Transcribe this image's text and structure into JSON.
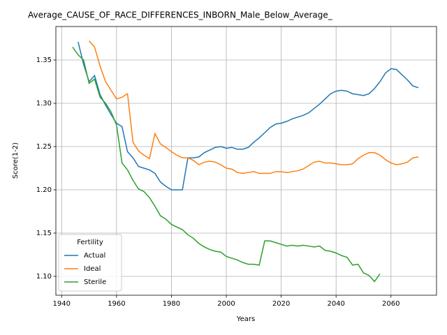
{
  "chart_data": {
    "type": "line",
    "title": "Average_CAUSE_OF_RACE_DIFFERENCES_INBORN_Male_Below_Average_",
    "x_label": "Years",
    "y_label": "Score(1-2)",
    "legend_title": "Fertility",
    "legend": "lower left",
    "grid": true,
    "x": [
      1944,
      1946,
      1948,
      1950,
      1952,
      1954,
      1956,
      1958,
      1960,
      1962,
      1964,
      1966,
      1968,
      1970,
      1972,
      1974,
      1976,
      1978,
      1980,
      1982,
      1984,
      1986,
      1988,
      1990,
      1992,
      1994,
      1996,
      1998,
      2000,
      2002,
      2004,
      2006,
      2008,
      2010,
      2012,
      2014,
      2016,
      2018,
      2020,
      2022,
      2024,
      2026,
      2028,
      2030,
      2032,
      2034,
      2036,
      2038,
      2040,
      2042,
      2044,
      2046,
      2048,
      2050,
      2052,
      2054,
      2056,
      2058,
      2060,
      2062,
      2064,
      2066,
      2068,
      2070
    ],
    "series": [
      {
        "name": "Actual",
        "color": "#1f77b4",
        "values": [
          null,
          1.371,
          1.345,
          1.325,
          1.332,
          1.31,
          1.298,
          1.287,
          1.277,
          1.273,
          1.244,
          1.237,
          1.227,
          1.225,
          1.223,
          1.219,
          1.209,
          1.204,
          1.2,
          1.2,
          1.2,
          1.237,
          1.237,
          1.238,
          1.243,
          1.246,
          1.249,
          1.25,
          1.248,
          1.249,
          1.247,
          1.247,
          1.249,
          1.255,
          1.26,
          1.266,
          1.272,
          1.276,
          1.277,
          1.279,
          1.282,
          1.284,
          1.286,
          1.289,
          1.294,
          1.299,
          1.305,
          1.311,
          1.314,
          1.315,
          1.314,
          1.311,
          1.31,
          1.309,
          1.311,
          1.317,
          1.325,
          1.335,
          1.34,
          1.339,
          1.333,
          1.327,
          1.32,
          1.318
        ]
      },
      {
        "name": "Ideal",
        "color": "#ff7f0e",
        "values": [
          null,
          null,
          null,
          1.372,
          1.365,
          1.343,
          1.325,
          1.315,
          1.305,
          1.307,
          1.311,
          1.255,
          1.245,
          1.24,
          1.236,
          1.265,
          1.253,
          1.249,
          1.244,
          1.24,
          1.237,
          1.237,
          1.234,
          1.229,
          1.232,
          1.233,
          1.232,
          1.229,
          1.225,
          1.224,
          1.22,
          1.219,
          1.22,
          1.221,
          1.219,
          1.219,
          1.219,
          1.221,
          1.221,
          1.22,
          1.221,
          1.222,
          1.224,
          1.228,
          1.232,
          1.233,
          1.231,
          1.231,
          1.23,
          1.229,
          1.229,
          1.23,
          1.236,
          1.24,
          1.243,
          1.243,
          1.24,
          1.235,
          1.231,
          1.229,
          1.23,
          1.232,
          1.237,
          1.238
        ]
      },
      {
        "name": "Sterile",
        "color": "#2ca02c",
        "values": [
          1.365,
          1.356,
          1.35,
          1.323,
          1.328,
          1.307,
          1.3,
          1.29,
          1.275,
          1.231,
          1.223,
          1.211,
          1.201,
          1.198,
          1.191,
          1.181,
          1.17,
          1.166,
          1.16,
          1.157,
          1.154,
          1.148,
          1.144,
          1.138,
          1.134,
          1.131,
          1.129,
          1.128,
          1.123,
          1.121,
          1.119,
          1.116,
          1.114,
          1.114,
          1.113,
          1.141,
          1.141,
          1.139,
          1.137,
          1.135,
          1.136,
          1.135,
          1.136,
          1.135,
          1.134,
          1.135,
          1.13,
          1.129,
          1.127,
          1.124,
          1.122,
          1.113,
          1.114,
          1.104,
          1.101,
          1.094,
          1.103,
          null,
          null,
          null,
          null,
          null,
          null,
          null
        ]
      }
    ],
    "xlim": [
      1937.9,
      2076.6
    ],
    "xticks": [
      1940,
      1960,
      1980,
      2000,
      2020,
      2040,
      2060
    ],
    "ylim": [
      1.0782,
      1.3887
    ],
    "yticks": [
      {
        "value": 1.1,
        "label": "1.10"
      },
      1.15,
      {
        "value": 1.2,
        "label": "1.20"
      },
      1.25,
      {
        "value": 1.3,
        "label": "1.30"
      },
      1.35
    ]
  }
}
